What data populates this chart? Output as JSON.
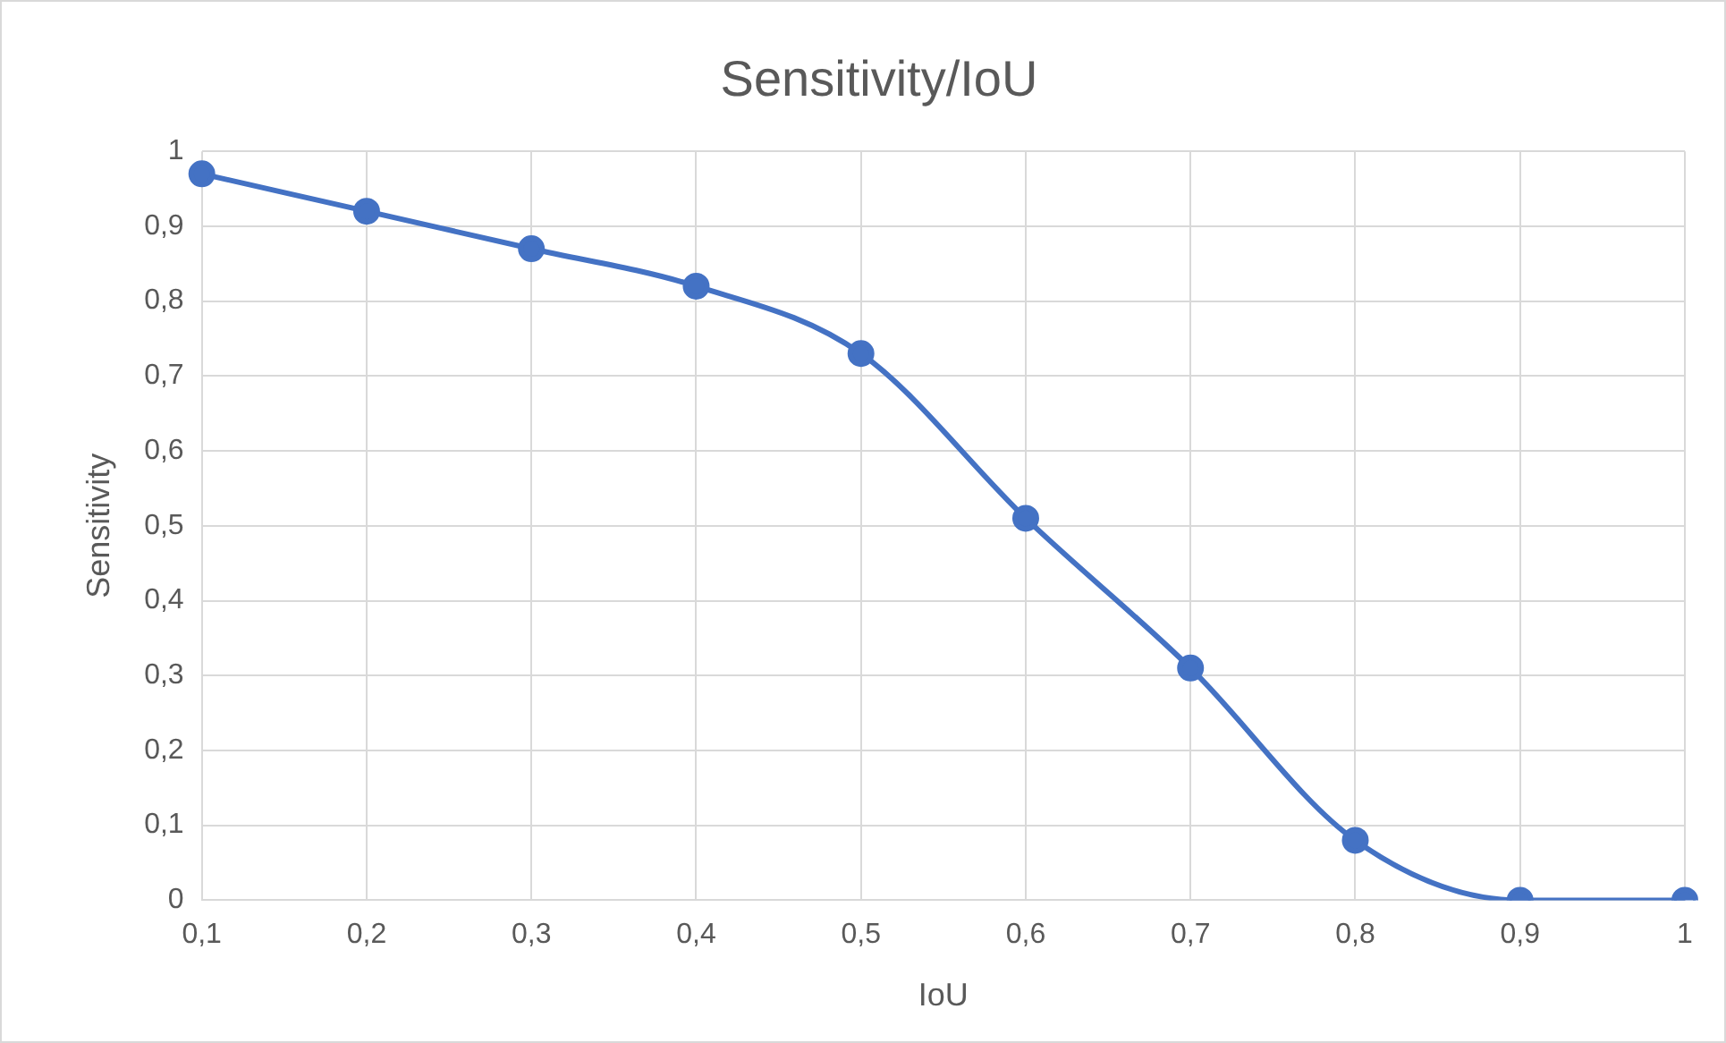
{
  "chart_data": {
    "type": "line",
    "title": "Sensitivity/IoU",
    "xlabel": "IoU",
    "ylabel": "Sensitivity",
    "categories": [
      "0,1",
      "0,2",
      "0,3",
      "0,4",
      "0,5",
      "0,6",
      "0,7",
      "0,8",
      "0,9",
      "1"
    ],
    "series": [
      {
        "color": "#4472c4",
        "values": [
          0.97,
          0.92,
          0.87,
          0.82,
          0.73,
          0.51,
          0.31,
          0.08,
          0.0,
          0.0
        ]
      }
    ],
    "ylim": [
      0,
      1
    ],
    "yticks": [
      0,
      {
        "value": 0.1,
        "label": "0,1"
      },
      {
        "value": 0.2,
        "label": "0,2"
      },
      {
        "value": 0.3,
        "label": "0,3"
      },
      {
        "value": 0.4,
        "label": "0,4"
      },
      {
        "value": 0.5,
        "label": "0,5"
      },
      {
        "value": 0.6,
        "label": "0,6"
      },
      {
        "value": 0.7,
        "label": "0,7"
      },
      {
        "value": 0.8,
        "label": "0,8"
      },
      {
        "value": 0.9,
        "label": "0,9"
      },
      1
    ],
    "grid": true,
    "legend": false,
    "marker": "circle",
    "line_style": "solid"
  }
}
